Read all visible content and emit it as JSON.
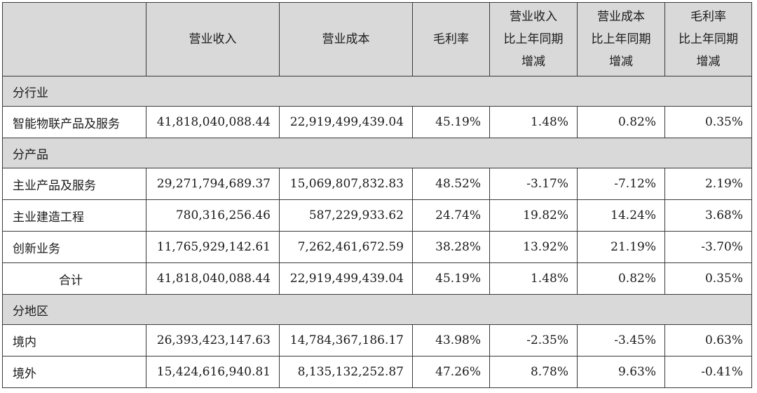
{
  "headers": {
    "blank": "",
    "revenue": "营业收入",
    "cost": "营业成本",
    "margin": "毛利率",
    "revenue_yoy": [
      "营业收入",
      "比上年同期",
      "增减"
    ],
    "cost_yoy": [
      "营业成本",
      "比上年同期",
      "增减"
    ],
    "margin_yoy": [
      "毛利率",
      "比上年同期",
      "增减"
    ]
  },
  "sections": [
    {
      "title": "分行业",
      "rows": [
        {
          "label": "智能物联产品及服务",
          "revenue": "41,818,040,088.44",
          "cost": "22,919,499,439.04",
          "margin": "45.19%",
          "revenue_yoy": "1.48%",
          "cost_yoy": "0.82%",
          "margin_yoy": "0.35%"
        }
      ]
    },
    {
      "title": "分产品",
      "rows": [
        {
          "label": "主业产品及服务",
          "revenue": "29,271,794,689.37",
          "cost": "15,069,807,832.83",
          "margin": "48.52%",
          "revenue_yoy": "-3.17%",
          "cost_yoy": "-7.12%",
          "margin_yoy": "2.19%"
        },
        {
          "label": "主业建造工程",
          "revenue": "780,316,256.46",
          "cost": "587,229,933.62",
          "margin": "24.74%",
          "revenue_yoy": "19.82%",
          "cost_yoy": "14.24%",
          "margin_yoy": "3.68%"
        },
        {
          "label": "创新业务",
          "revenue": "11,765,929,142.61",
          "cost": "7,262,461,672.59",
          "margin": "38.28%",
          "revenue_yoy": "13.92%",
          "cost_yoy": "21.19%",
          "margin_yoy": "-3.70%"
        },
        {
          "label": "合计",
          "revenue": "41,818,040,088.44",
          "cost": "22,919,499,439.04",
          "margin": "45.19%",
          "revenue_yoy": "1.48%",
          "cost_yoy": "0.82%",
          "margin_yoy": "0.35%"
        }
      ]
    },
    {
      "title": "分地区",
      "rows": [
        {
          "label": "境内",
          "revenue": "26,393,423,147.63",
          "cost": "14,784,367,186.17",
          "margin": "43.98%",
          "revenue_yoy": "-2.35%",
          "cost_yoy": "-3.45%",
          "margin_yoy": "0.63%"
        },
        {
          "label": "境外",
          "revenue": "15,424,616,940.81",
          "cost": "8,135,132,252.87",
          "margin": "47.26%",
          "revenue_yoy": "8.78%",
          "cost_yoy": "9.63%",
          "margin_yoy": "-0.41%"
        }
      ]
    }
  ]
}
